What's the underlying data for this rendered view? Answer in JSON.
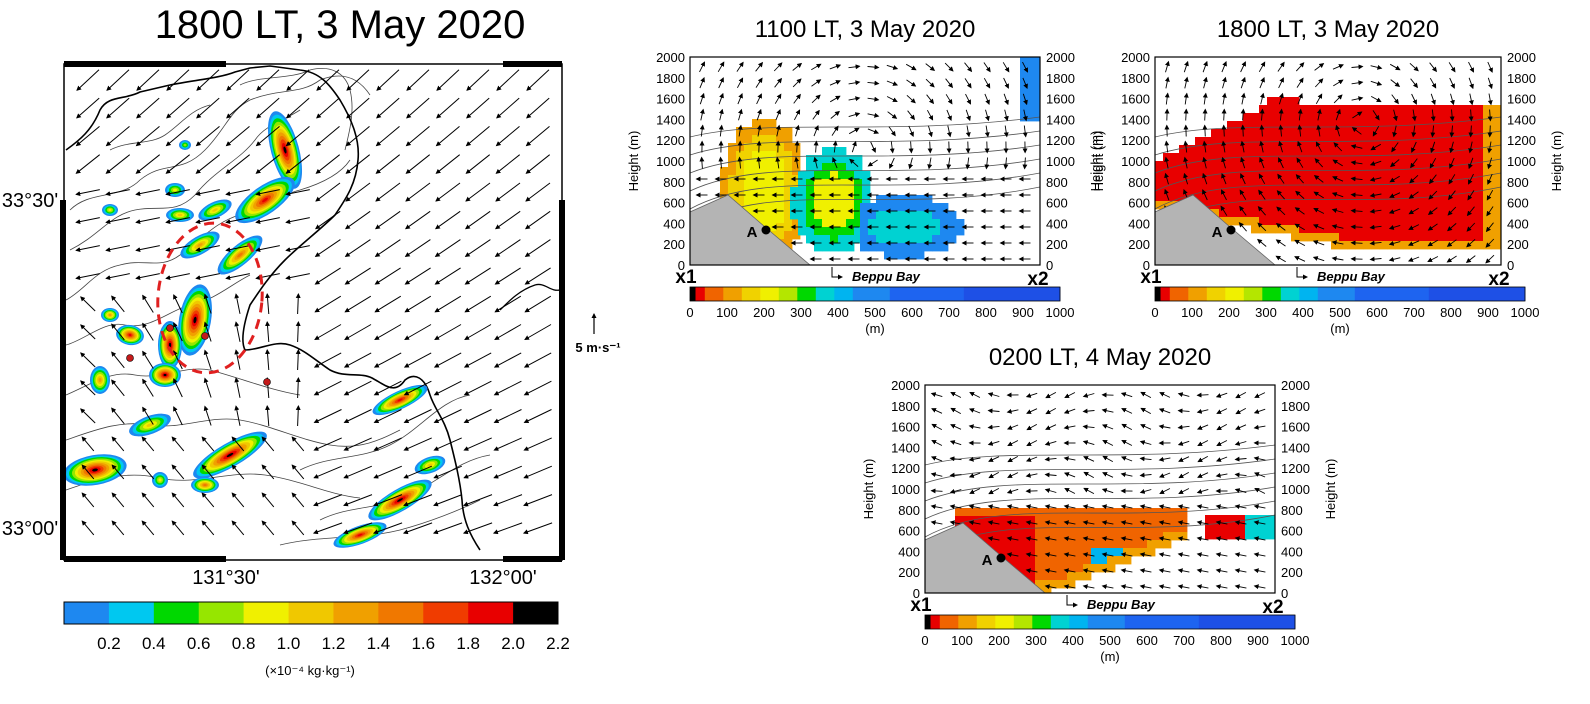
{
  "chart_data": [
    {
      "type": "map",
      "title": "1800 LT, 3 May 2020",
      "lon_ticks": [
        "131°30'",
        "132°00'"
      ],
      "lat_ticks": [
        "33°30'",
        "33°00'"
      ],
      "reference_vector_label": "5 m·s⁻¹",
      "colorbar": {
        "ticks": [
          "0.2",
          "0.4",
          "0.6",
          "0.8",
          "1.0",
          "1.2",
          "1.4",
          "1.6",
          "1.8",
          "2.0",
          "2.2"
        ],
        "unit": "(×10⁻⁴ kg·kg⁻¹)",
        "colors": [
          "#1e88f0",
          "#00c8f0",
          "#00d800",
          "#96e600",
          "#f0f000",
          "#f0c800",
          "#f0a000",
          "#f07800",
          "#f03c00",
          "#e80000",
          "#000000"
        ]
      }
    },
    {
      "type": "heatmap",
      "title": "1100 LT, 3 May 2020",
      "ylabel": "Height (m)",
      "y_ticks": [
        0,
        200,
        400,
        600,
        800,
        1000,
        1200,
        1400,
        1600,
        1800,
        2000
      ],
      "ylim": [
        0,
        2000
      ],
      "x_start": "x1",
      "x_end": "x2",
      "point_label": "A",
      "bay_label": "Beppu Bay",
      "colorbar_ticks": [
        0,
        100,
        200,
        300,
        400,
        500,
        600,
        700,
        800,
        900,
        1000
      ],
      "colorbar_unit": "(m)"
    },
    {
      "type": "heatmap",
      "title": "1800 LT, 3 May 2020",
      "ylabel": "Height (m)",
      "y_ticks": [
        0,
        200,
        400,
        600,
        800,
        1000,
        1200,
        1400,
        1600,
        1800,
        2000
      ],
      "ylim": [
        0,
        2000
      ],
      "x_start": "x1",
      "x_end": "x2",
      "point_label": "A",
      "bay_label": "Beppu Bay",
      "colorbar_ticks": [
        0,
        100,
        200,
        300,
        400,
        500,
        600,
        700,
        800,
        900,
        1000
      ],
      "colorbar_unit": "(m)"
    },
    {
      "type": "heatmap",
      "title": "0200 LT, 4 May 2020",
      "ylabel": "Height (m)",
      "y_ticks": [
        0,
        200,
        400,
        600,
        800,
        1000,
        1200,
        1400,
        1600,
        1800,
        2000
      ],
      "ylim": [
        0,
        2000
      ],
      "x_start": "x1",
      "x_end": "x2",
      "point_label": "A",
      "bay_label": "Beppu Bay",
      "colorbar_ticks": [
        0,
        100,
        200,
        300,
        400,
        500,
        600,
        700,
        800,
        900,
        1000
      ],
      "colorbar_unit": "(m)"
    }
  ],
  "section_colorbar_colors": [
    "#000000",
    "#e80000",
    "#f06400",
    "#f0a000",
    "#f0d200",
    "#f0f000",
    "#b4e600",
    "#00d800",
    "#00d2d2",
    "#00b4f0",
    "#1e88f0",
    "#1e64f0",
    "#1e50e6"
  ]
}
